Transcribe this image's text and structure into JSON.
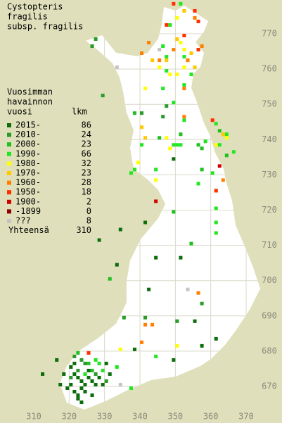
{
  "title": [
    "Cystopteris",
    "fragilis",
    "subsp. fragilis"
  ],
  "legend": {
    "header": [
      "Vuosimman",
      "havainnon",
      "vuosi"
    ],
    "count_header": "lkm",
    "entries": [
      {
        "label": "2015-",
        "count": 86,
        "color": "#0b6e0b",
        "x": [
          321,
          322,
          323,
          320,
          319,
          321,
          322,
          323,
          324,
          325,
          326,
          327,
          324,
          322,
          318,
          317,
          320,
          321,
          325,
          328,
          329,
          331,
          326,
          323,
          330,
          338,
          349,
          357,
          361,
          355,
          342,
          333,
          344,
          328,
          334,
          316,
          312,
          349,
          351,
          341
        ],
        "y": [
          673,
          672,
          671,
          670,
          669,
          668,
          667,
          669,
          670,
          672,
          671,
          670,
          668,
          666,
          673,
          670,
          675,
          676,
          674,
          672,
          670,
          673,
          667,
          665,
          676,
          680,
          677,
          681,
          683,
          688,
          697,
          704,
          706,
          711,
          714,
          677,
          673,
          734,
          706,
          716
        ]
      },
      {
        "label": "2010-",
        "count": 24,
        "color": "#2a9a2a",
        "x": [
          323,
          324,
          322,
          327,
          330,
          320,
          327,
          326,
          347,
          346,
          340,
          357,
          350,
          335,
          341,
          329,
          321
        ],
        "y": [
          677,
          676,
          674,
          673,
          671,
          672,
          768,
          766,
          749,
          746,
          747,
          693,
          688,
          689,
          689,
          752,
          678
        ]
      },
      {
        "label": "2000-",
        "count": 23,
        "color": "#1fc01f",
        "x": [
          325,
          326,
          322,
          331,
          356,
          357,
          351,
          345,
          362,
          364,
          338,
          349,
          354,
          357
        ],
        "y": [
          676,
          674,
          679,
          700,
          738,
          737,
          741,
          740,
          742,
          735,
          747,
          719,
          710,
          731
        ]
      },
      {
        "label": "1990-",
        "count": 66,
        "color": "#22e622",
        "x": [
          328,
          324,
          327,
          329,
          333,
          344,
          337,
          349,
          350,
          351,
          361,
          362,
          360,
          356,
          361,
          361,
          361,
          361,
          358,
          340,
          337,
          338,
          344,
          346,
          349,
          352,
          351,
          348,
          346,
          347,
          347,
          354,
          352,
          352,
          366,
          364
        ],
        "y": [
          676,
          673,
          677,
          674,
          675,
          678,
          669,
          738,
          738,
          738,
          744,
          738,
          730,
          727,
          725,
          720,
          716,
          713,
          739,
          738,
          730,
          731,
          731,
          754,
          750,
          745,
          778,
          772,
          766,
          763,
          759,
          758,
          763,
          755,
          736,
          741
        ]
      },
      {
        "label": "1980-",
        "count": 32,
        "color": "#ffff00",
        "x": [
          350,
          351,
          352,
          345,
          350,
          348,
          364,
          347,
          361,
          339,
          344,
          341,
          348,
          334,
          350,
          352
        ],
        "y": [
          774,
          767,
          765,
          760,
          758,
          758,
          740,
          740,
          738,
          733,
          728,
          754,
          737,
          680,
          681,
          760
        ]
      },
      {
        "label": "1970-",
        "count": 23,
        "color": "#ffc800",
        "x": [
          352,
          354,
          353,
          343,
          347,
          340,
          341,
          355,
          363,
          350
        ],
        "y": [
          776,
          764,
          762,
          762,
          762,
          743,
          740,
          760,
          741,
          768
        ]
      },
      {
        "label": "1960-",
        "count": 28,
        "color": "#ff8000",
        "x": [
          355,
          357,
          353,
          349,
          345,
          342,
          340,
          341,
          343,
          352,
          352,
          356,
          363,
          340
        ],
        "y": [
          774,
          766,
          762,
          765,
          762,
          767,
          764,
          687,
          687,
          754,
          746,
          696,
          728,
          682
        ]
      },
      {
        "label": "1950-",
        "count": 18,
        "color": "#ff3000",
        "x": [
          349,
          355,
          347,
          356,
          356,
          352,
          361,
          360,
          325
        ],
        "y": [
          778,
          776,
          772,
          773,
          765,
          769,
          725,
          745,
          679
        ]
      },
      {
        "label": "1900-",
        "count": 2,
        "color": "#d00000",
        "x": [
          344,
          362
        ],
        "y": [
          722,
          732
        ]
      },
      {
        "label": "-1899",
        "count": 0,
        "color": "#8b0000",
        "x": [],
        "y": []
      },
      {
        "label": "???",
        "count": 8,
        "color": "#c4c4c4",
        "x": [
          353,
          333,
          334,
          345
        ],
        "y": [
          697,
          760,
          670,
          765
        ]
      }
    ],
    "total_label": "Yhteensä",
    "total": 310
  },
  "axes": {
    "xticks": [
      310,
      320,
      330,
      340,
      350,
      360,
      370
    ],
    "yticks": [
      670,
      680,
      690,
      700,
      710,
      720,
      730,
      740,
      750,
      760,
      770
    ]
  }
}
